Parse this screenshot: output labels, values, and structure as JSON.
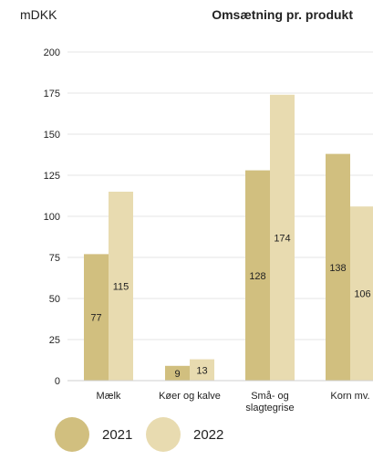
{
  "chart_data": {
    "type": "bar",
    "title": "Omsætning pr. produkt",
    "ylabel": "mDKK",
    "xlabel": "",
    "ylim": [
      0,
      200
    ],
    "yticks": [
      0,
      25,
      50,
      75,
      100,
      125,
      150,
      175,
      200
    ],
    "grid": true,
    "legend_position": "bottom-left",
    "categories": [
      [
        "Mælk"
      ],
      [
        "Køer og kalve"
      ],
      [
        "Små- og",
        "slagtegrise"
      ],
      [
        "Korn mv."
      ]
    ],
    "series": [
      {
        "name": "2021",
        "color": "#d1bf7f",
        "values": [
          77,
          9,
          128,
          138
        ],
        "labels": [
          "77",
          "9",
          "128",
          "138"
        ]
      },
      {
        "name": "2022",
        "color": "#e8dbb0",
        "values": [
          115,
          13,
          174,
          106
        ],
        "labels": [
          "115",
          "13",
          "174",
          "106"
        ]
      }
    ]
  }
}
